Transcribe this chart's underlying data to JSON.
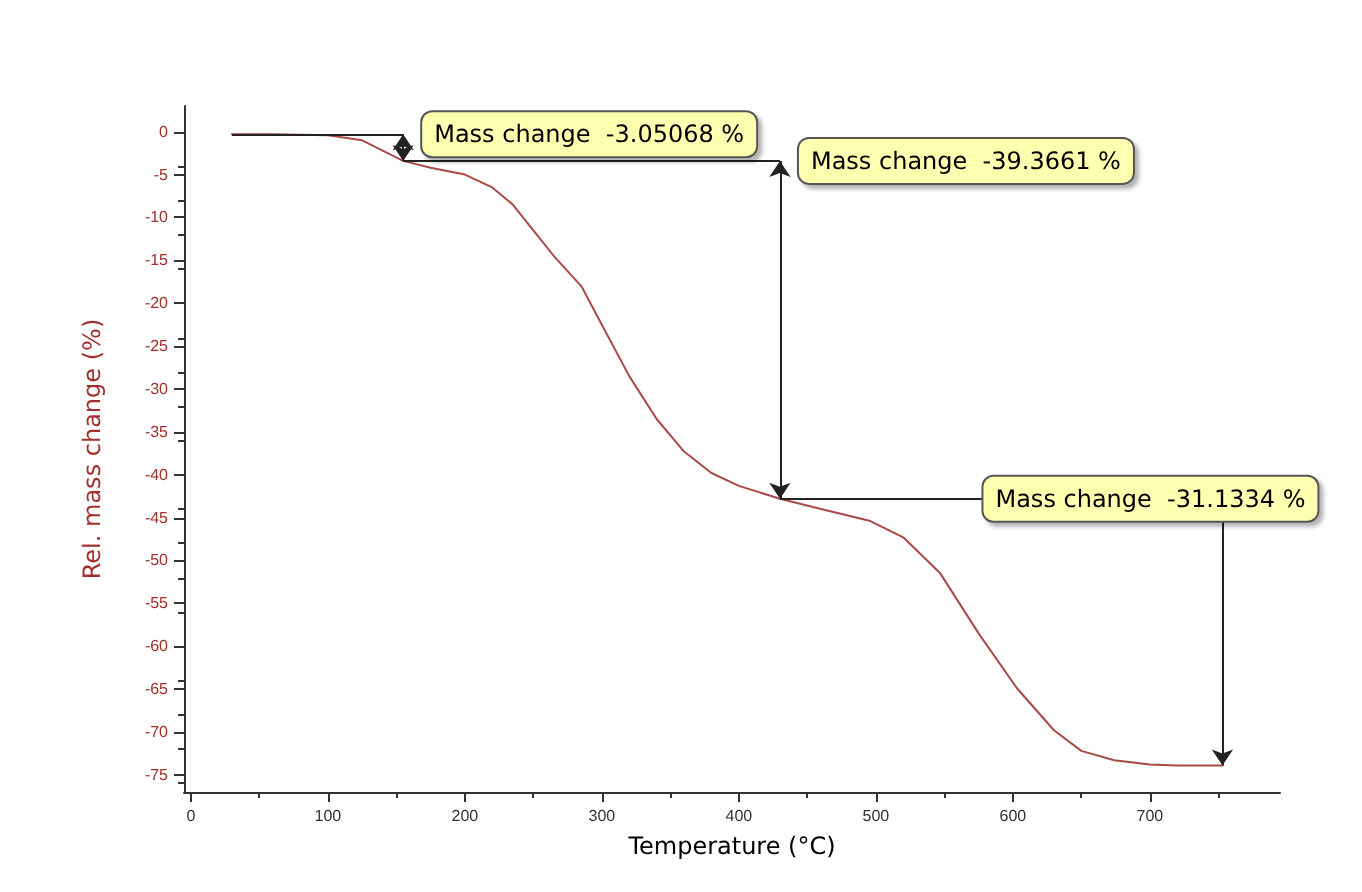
{
  "chart_data": {
    "type": "line",
    "xlabel": "Temperature (°C)",
    "ylabel": "Rel. mass change (%)",
    "series": [
      {
        "color": "#a84a48",
        "x": [
          30,
          60,
          100,
          125,
          140,
          155,
          175,
          200,
          220,
          235,
          250,
          265,
          285,
          300,
          320,
          340,
          360,
          380,
          400,
          430,
          460,
          496,
          520,
          547,
          575,
          603,
          630,
          650,
          674,
          700,
          720,
          740,
          753
        ],
        "values": [
          -0.3,
          -0.3,
          -0.4,
          -1.0,
          -2.2,
          -3.4,
          -4.2,
          -5.0,
          -6.5,
          -8.5,
          -11.5,
          -14.5,
          -18,
          -22.5,
          -28.5,
          -33.5,
          -37.3,
          -39.8,
          -41.3,
          -42.8,
          -44,
          -45.4,
          -47.3,
          -51.5,
          -58.5,
          -64.9,
          -69.8,
          -72.2,
          -73.3,
          -73.8,
          -73.9,
          -73.9,
          -73.9
        ]
      }
    ],
    "xlim": [
      -5,
      795
    ],
    "xticks": [
      0,
      100,
      200,
      300,
      400,
      500,
      600,
      700
    ],
    "ylim": [
      -77,
      3
    ],
    "yticks": [
      0,
      -5,
      -10,
      -15,
      -20,
      -25,
      -30,
      -35,
      -40,
      -45,
      -50,
      -55,
      -60,
      -65,
      -70,
      -75
    ],
    "annotations": [
      {
        "text": "Mass change  -3.05068 %",
        "x": 155,
        "y": -3.4
      },
      {
        "text": "Mass change  -39.3661 %",
        "x": 430,
        "y": -42.8
      },
      {
        "text": "Mass change  -31.1334 %",
        "x": 753,
        "y": -73.9
      }
    ],
    "grid": false,
    "marker": "none",
    "line_style": "solid"
  }
}
